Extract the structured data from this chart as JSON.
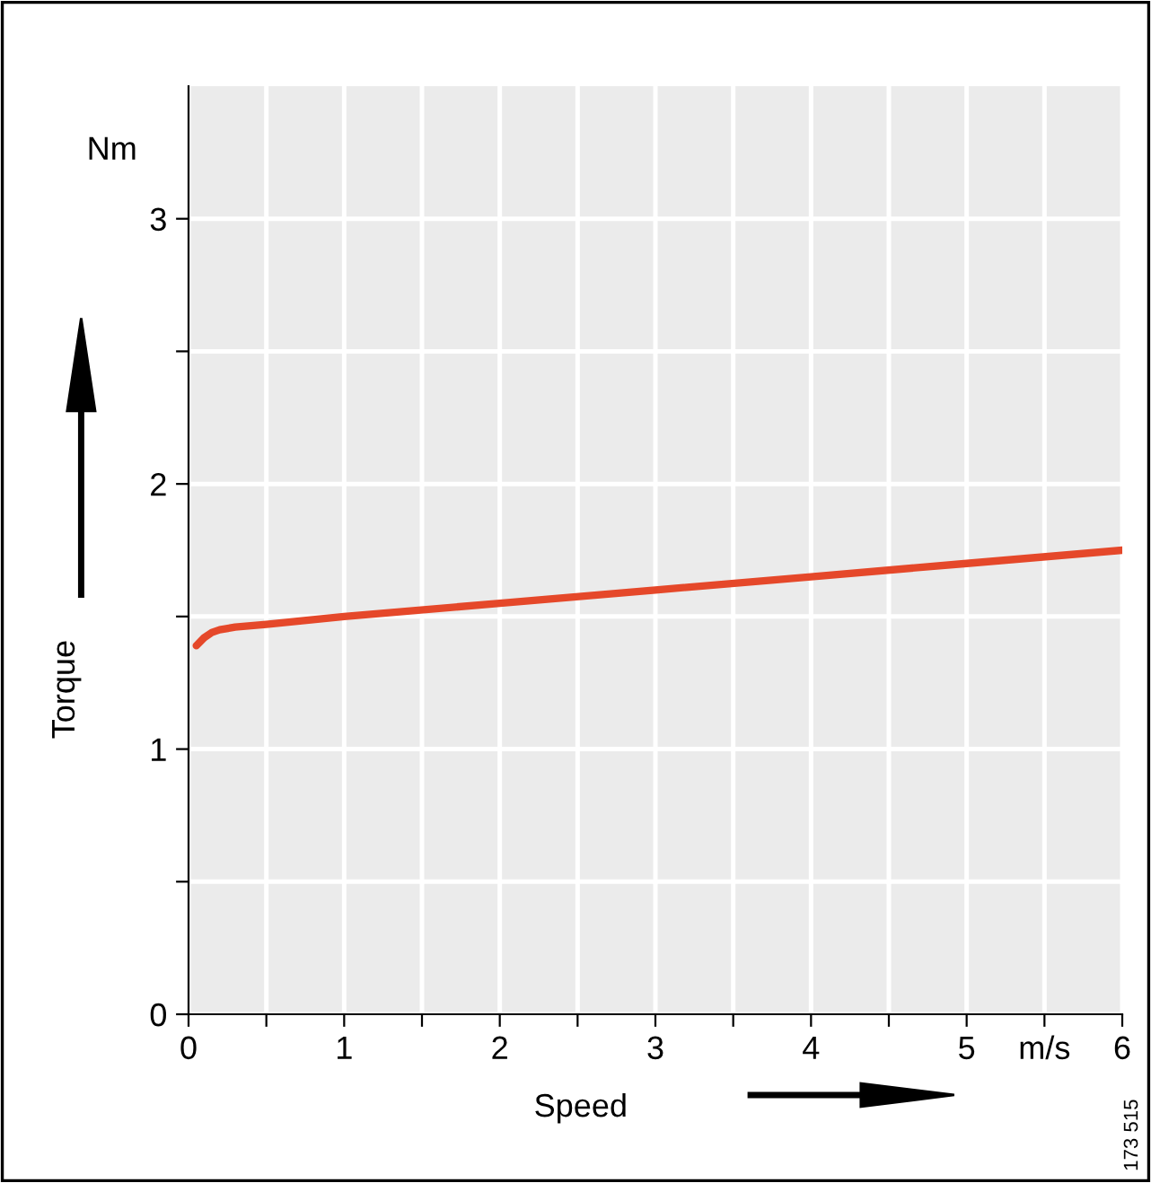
{
  "chart_data": {
    "type": "line",
    "xlabel": "Speed",
    "ylabel": "Torque",
    "series": [
      {
        "color": "#e5482a",
        "x": [
          0.05,
          0.1,
          0.15,
          0.2,
          0.3,
          0.5,
          1,
          2,
          3,
          4,
          5,
          6
        ],
        "values": [
          1.39,
          1.42,
          1.44,
          1.45,
          1.46,
          1.47,
          1.5,
          1.55,
          1.6,
          1.65,
          1.7,
          1.75
        ]
      }
    ],
    "xlim": [
      0,
      6
    ],
    "ylim": [
      0,
      3.5
    ],
    "xticks": [
      0,
      {
        "value": 0.5,
        "label": null
      },
      1,
      {
        "value": 1.5,
        "label": null
      },
      2,
      {
        "value": 2.5,
        "label": null
      },
      3,
      {
        "value": 3.5,
        "label": null
      },
      4,
      {
        "value": 4.5,
        "label": null
      },
      5,
      {
        "value": 5.5,
        "label": "m/s"
      },
      6
    ],
    "yticks": [
      0,
      {
        "value": 0.5,
        "label": null
      },
      1,
      {
        "value": 1.5,
        "label": null
      },
      2,
      {
        "value": 2.5,
        "label": null
      },
      3
    ],
    "grid": true,
    "legend": false,
    "marker": "none",
    "line_style": "solid",
    "annotations": [
      "Nm",
      "173 515"
    ]
  }
}
